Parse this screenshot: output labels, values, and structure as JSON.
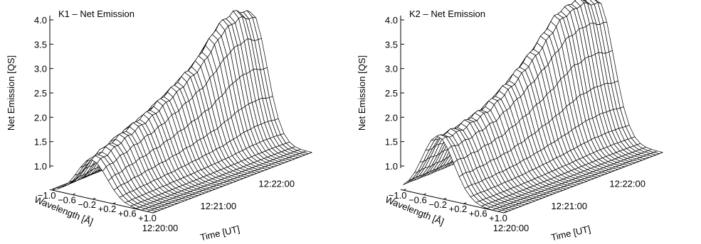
{
  "chart_data": [
    {
      "type": "surface",
      "title": "K1 – Net Emission",
      "zlabel": "Net Emission [QS]",
      "ylabel": "Wavelength [Å]",
      "xlabel": "Time [UT]",
      "zlim": [
        1.0,
        4.0
      ],
      "z_ticks": [
        "1.0",
        "1.5",
        "2.0",
        "2.5",
        "3.0",
        "3.5",
        "4.0"
      ],
      "wavelength_range": [
        -1.0,
        1.0
      ],
      "wavelength_ticks": [
        "−1.0",
        "−0.6",
        "−0.2",
        "+0.2",
        "+0.6",
        "+1.0"
      ],
      "time_ticks": [
        "12:20:00",
        "12:21:00",
        "12:22:00"
      ],
      "profile_width_A": 0.3,
      "profile_center_A": 0.2,
      "peak_profile": {
        "time_fraction": [
          0.0,
          0.15,
          0.35,
          0.5,
          0.65,
          0.8,
          0.9,
          1.0
        ],
        "peak_value": [
          1.8,
          2.05,
          2.35,
          2.65,
          3.0,
          3.6,
          3.75,
          3.6
        ]
      }
    },
    {
      "type": "surface",
      "title": "K2 – Net Emission",
      "zlabel": "Net Emission [QS]",
      "ylabel": "Wavelength [Å]",
      "xlabel": "Time [UT]",
      "zlim": [
        1.0,
        4.0
      ],
      "z_ticks": [
        "1.0",
        "1.5",
        "2.0",
        "2.5",
        "3.0",
        "3.5",
        "4.0"
      ],
      "wavelength_range": [
        -1.0,
        1.0
      ],
      "wavelength_ticks": [
        "−1.0",
        "−0.6",
        "−0.2",
        "+0.2",
        "+0.6",
        "+1.0"
      ],
      "time_ticks": [
        "12:20:00",
        "12:21:00",
        "12:22:00"
      ],
      "profile_width_A": 0.32,
      "profile_center_A": 0.3,
      "peak_profile": {
        "time_fraction": [
          0.0,
          0.12,
          0.3,
          0.45,
          0.6,
          0.75,
          0.88,
          1.0
        ],
        "peak_value": [
          2.25,
          2.3,
          2.5,
          2.85,
          3.3,
          3.85,
          4.0,
          3.85
        ]
      }
    }
  ]
}
